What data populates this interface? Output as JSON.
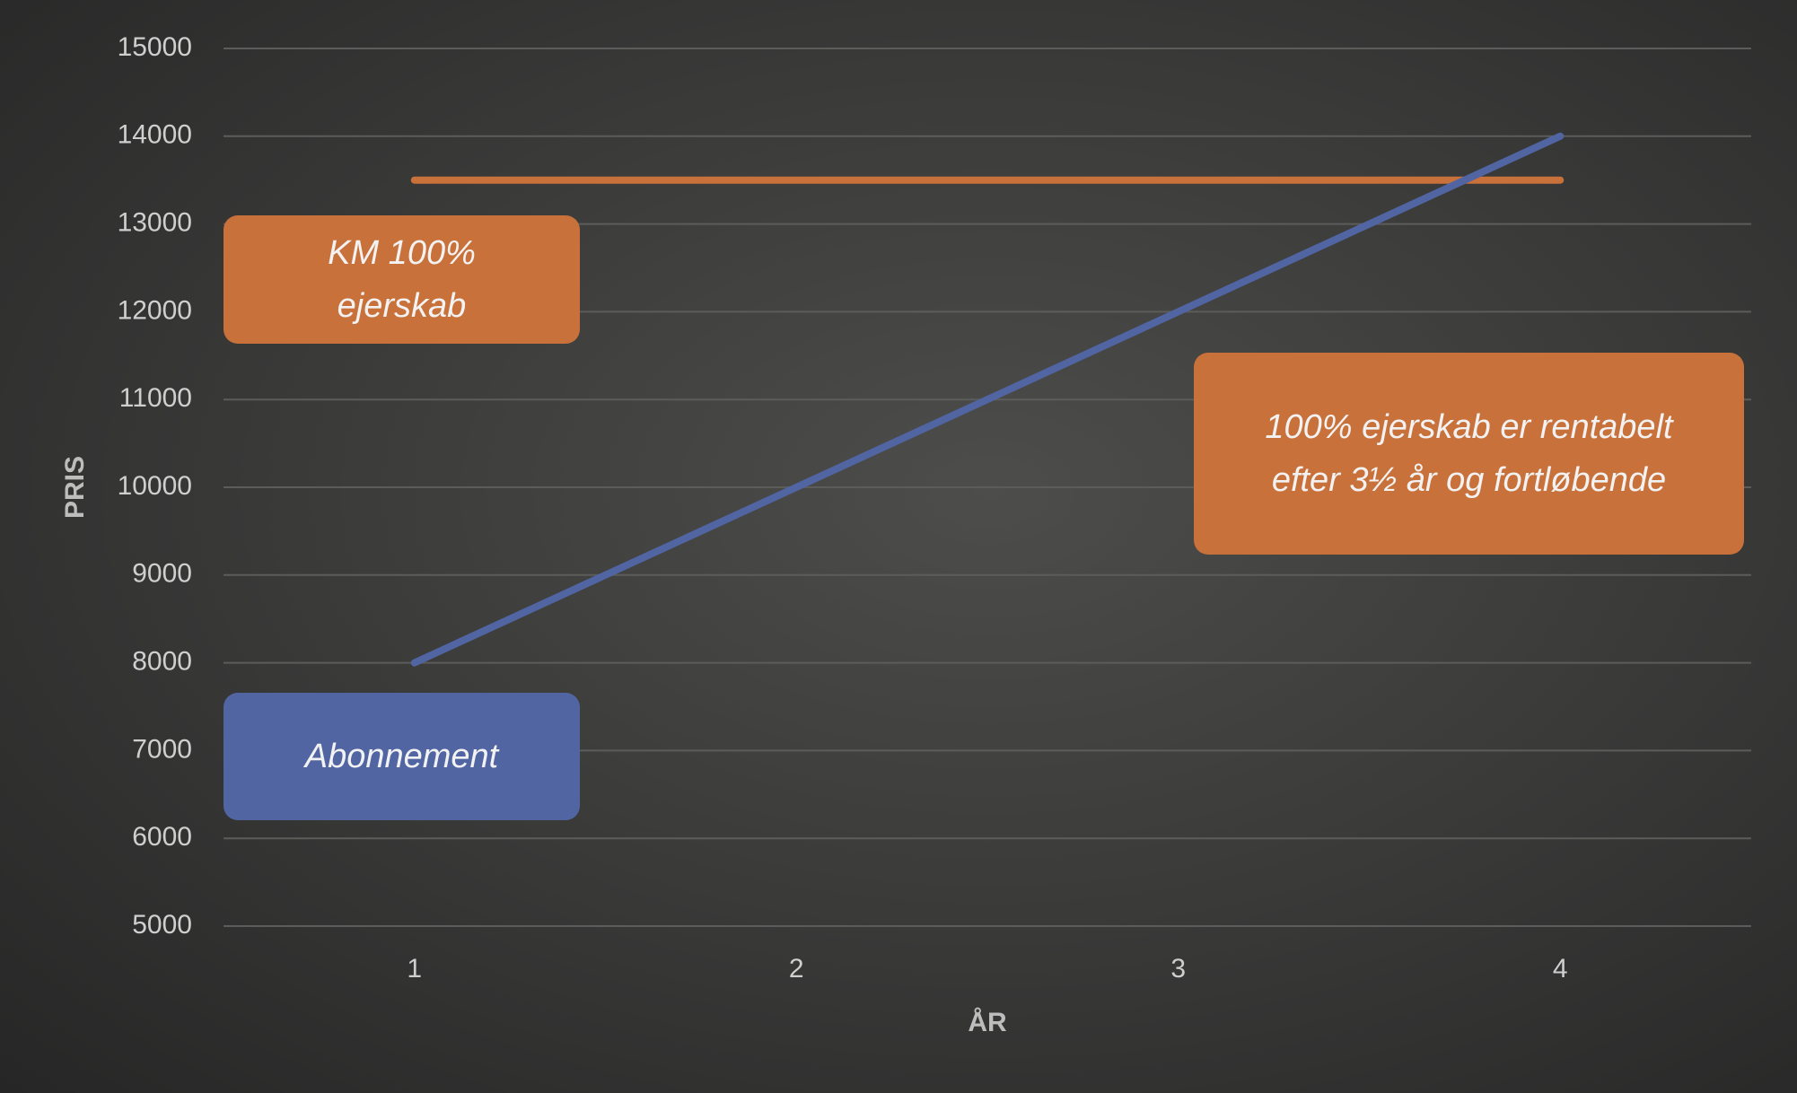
{
  "chart_data": {
    "type": "line",
    "x_label": "ÅR",
    "y_label": "PRIS",
    "categories": [
      "1",
      "2",
      "3",
      "4"
    ],
    "series": [
      {
        "name": "Abonnement",
        "color": "#5165a3",
        "values": [
          8000,
          10000,
          12000,
          14000
        ]
      },
      {
        "name": "KM 100% ejerskab",
        "color": "#c8713a",
        "values": [
          13500,
          13500,
          13500,
          13500
        ]
      }
    ],
    "annotations": [
      "100% ejerskab er rentabelt efter 3½ år og fortløbende"
    ],
    "ylim": [
      5000,
      15000
    ],
    "yticks": [
      5000,
      6000,
      7000,
      8000,
      9000,
      10000,
      11000,
      12000,
      13000,
      14000,
      15000
    ],
    "grid": true
  }
}
